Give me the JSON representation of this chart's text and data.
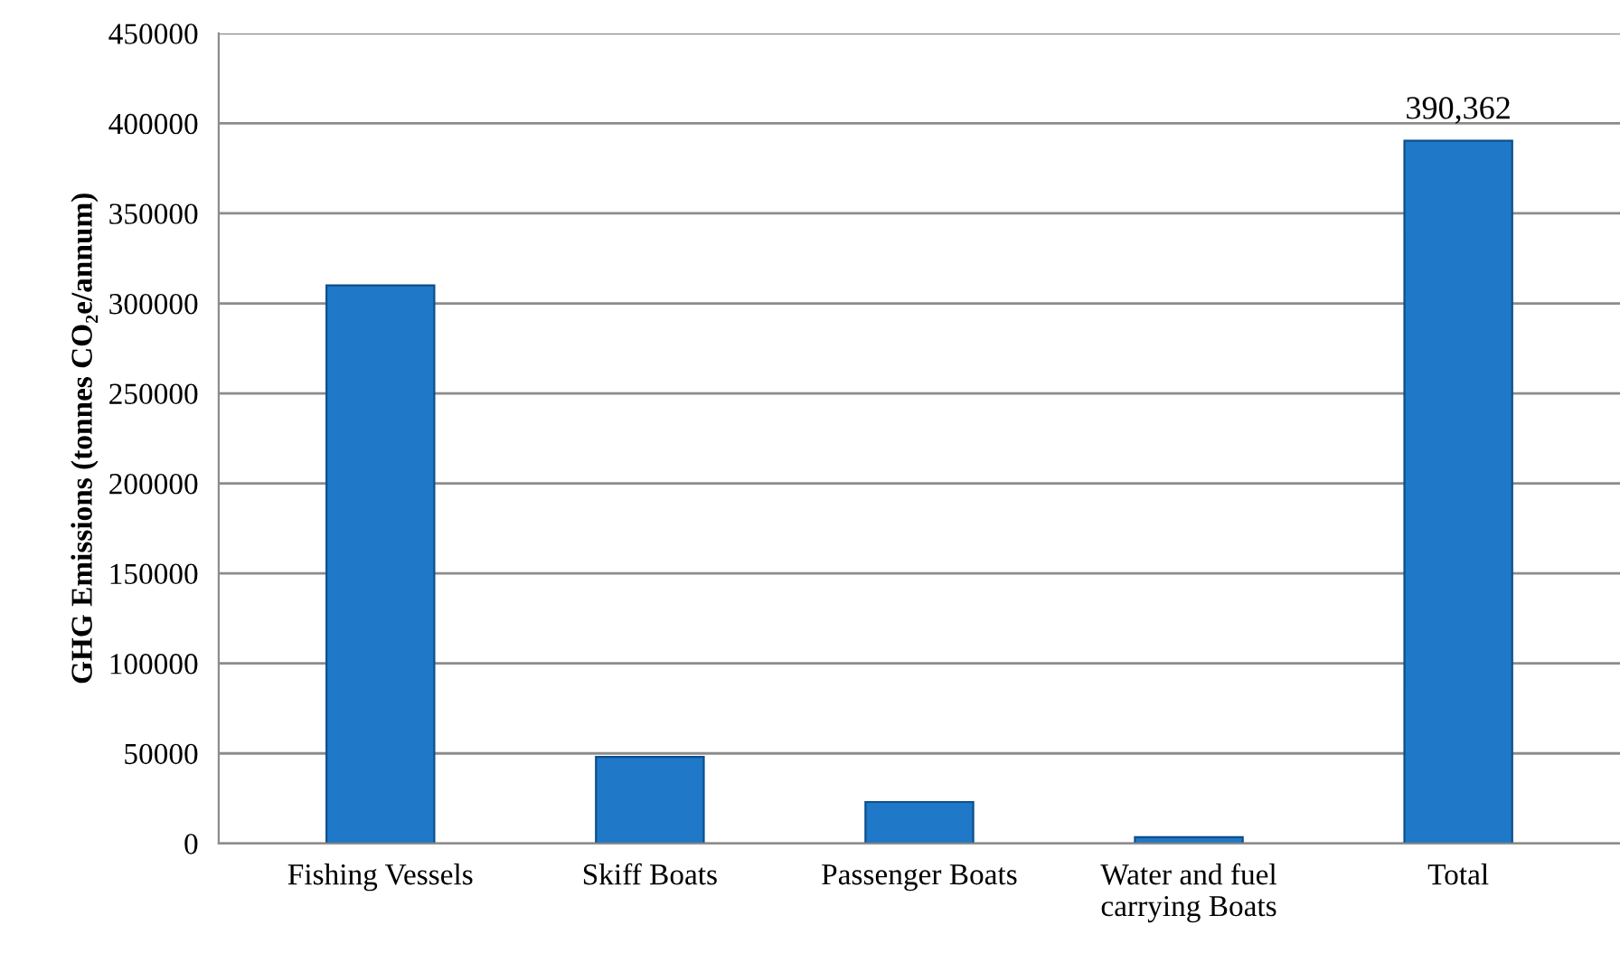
{
  "chart_data": {
    "type": "bar",
    "ylabel": "GHG Emissions (tonnes CO₂e/annum)",
    "categories": [
      "Fishing Vessels",
      "Skiff Boats",
      "Passenger Boats",
      "Water and fuel\ncarrying Boats",
      "Total"
    ],
    "values": [
      310000,
      48000,
      23000,
      3500,
      390362
    ],
    "value_labels": [
      null,
      null,
      null,
      null,
      "390,362"
    ],
    "color": "#1f78c8",
    "ylim": [
      0,
      450000
    ],
    "yticks": [
      0,
      50000,
      100000,
      150000,
      200000,
      250000,
      300000,
      350000,
      400000,
      450000
    ],
    "grid": "y"
  }
}
